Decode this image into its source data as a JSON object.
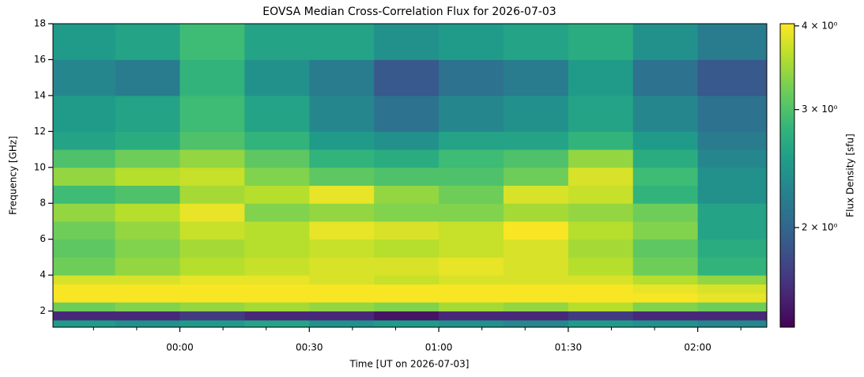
{
  "chart_data": {
    "type": "heatmap",
    "title": "EOVSA Median Cross-Correlation Flux for 2026-07-03",
    "x_label": "Time [UT on 2026-07-03]",
    "y_label": "Frequency [GHz]",
    "colorbar_label": "Flux Density [sfu]",
    "colormap": "viridis",
    "color_scale": "log",
    "xlim": [
      -29.4,
      136
    ],
    "ylim": [
      1.1,
      18
    ],
    "clim": [
      1.42,
      4.03
    ],
    "xticks": [
      {
        "value": 0,
        "label": "00:00"
      },
      {
        "value": 30,
        "label": "00:30"
      },
      {
        "value": 60,
        "label": "01:00"
      },
      {
        "value": 90,
        "label": "01:30"
      },
      {
        "value": 120,
        "label": "02:00"
      }
    ],
    "x_minor_ticks": [
      -20,
      -10,
      10,
      20,
      40,
      50,
      70,
      80,
      100,
      110,
      130
    ],
    "yticks": [
      2,
      4,
      6,
      8,
      10,
      12,
      14,
      16,
      18
    ],
    "cticks": [
      {
        "value": 2,
        "label": "2 × 10⁰"
      },
      {
        "value": 3,
        "label": "3 × 10⁰"
      },
      {
        "value": 4,
        "label": "4 × 10⁰"
      }
    ],
    "x_edges": [
      -29.4,
      -15,
      0,
      15,
      30,
      45,
      60,
      75,
      90,
      105,
      120,
      136
    ],
    "y_edges": [
      1.1,
      1.5,
      2.0,
      2.5,
      3.0,
      3.5,
      4.0,
      5,
      6,
      7,
      8,
      9,
      10,
      11,
      12,
      14,
      16,
      18
    ],
    "values": [
      [
        2.5,
        2.4,
        2.5,
        2.6,
        2.4,
        2.5,
        2.4,
        2.3,
        2.5,
        2.4,
        2.3
      ],
      [
        1.6,
        1.6,
        1.7,
        1.6,
        1.6,
        1.5,
        1.6,
        1.6,
        1.7,
        1.6,
        1.6
      ],
      [
        3.2,
        3.3,
        3.4,
        3.5,
        3.4,
        3.3,
        3.5,
        3.4,
        3.6,
        3.3,
        3.2
      ],
      [
        4.0,
        4.0,
        4.0,
        4.0,
        4.0,
        4.0,
        4.0,
        4.0,
        4.0,
        4.0,
        3.9
      ],
      [
        4.0,
        4.0,
        4.0,
        4.0,
        4.0,
        4.0,
        4.0,
        4.0,
        4.0,
        3.9,
        3.8
      ],
      [
        3.8,
        3.8,
        3.9,
        3.9,
        3.8,
        3.7,
        3.8,
        3.8,
        3.8,
        3.6,
        3.4
      ],
      [
        3.2,
        3.4,
        3.6,
        3.7,
        3.8,
        3.8,
        3.9,
        3.8,
        3.6,
        3.2,
        2.8
      ],
      [
        3.1,
        3.3,
        3.5,
        3.6,
        3.7,
        3.6,
        3.7,
        3.8,
        3.5,
        3.1,
        2.7
      ],
      [
        3.2,
        3.4,
        3.7,
        3.6,
        3.9,
        3.8,
        3.7,
        4.0,
        3.6,
        3.3,
        2.6
      ],
      [
        3.4,
        3.6,
        3.9,
        3.3,
        3.4,
        3.3,
        3.3,
        3.5,
        3.4,
        3.2,
        2.6
      ],
      [
        2.9,
        3.0,
        3.5,
        3.6,
        3.9,
        3.4,
        3.2,
        3.8,
        3.7,
        2.8,
        2.4
      ],
      [
        3.4,
        3.6,
        3.7,
        3.3,
        3.1,
        3.0,
        3.0,
        3.2,
        3.8,
        2.9,
        2.4
      ],
      [
        3.0,
        3.2,
        3.4,
        3.1,
        2.8,
        2.7,
        2.9,
        3.0,
        3.4,
        2.7,
        2.3
      ],
      [
        2.6,
        2.7,
        3.0,
        2.8,
        2.5,
        2.4,
        2.6,
        2.6,
        2.8,
        2.5,
        2.2
      ],
      [
        2.5,
        2.6,
        2.9,
        2.6,
        2.3,
        2.1,
        2.3,
        2.4,
        2.6,
        2.3,
        2.1
      ],
      [
        2.3,
        2.2,
        2.8,
        2.4,
        2.2,
        1.9,
        2.1,
        2.2,
        2.5,
        2.1,
        1.9
      ],
      [
        2.5,
        2.6,
        2.9,
        2.6,
        2.6,
        2.4,
        2.5,
        2.6,
        2.7,
        2.4,
        2.2
      ]
    ]
  }
}
